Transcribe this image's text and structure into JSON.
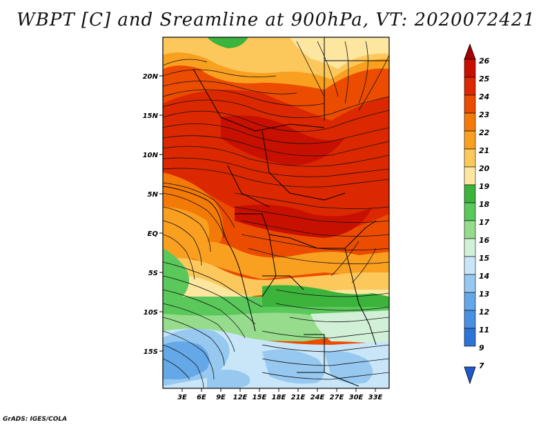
{
  "title": "WBPT [C] and Sreamline at 900hPa, VT: 2020072421",
  "credit": "GrADS: IGES/COLA",
  "map": {
    "lat_ticks": [
      "20N",
      "15N",
      "10N",
      "5N",
      "EQ",
      "5S",
      "10S",
      "15S"
    ],
    "lon_ticks": [
      "3E",
      "6E",
      "9E",
      "12E",
      "15E",
      "18E",
      "21E",
      "24E",
      "27E",
      "30E",
      "33E"
    ]
  },
  "colorbar": {
    "labels": [
      "26",
      "25",
      "24",
      "23",
      "22",
      "21",
      "20",
      "19",
      "18",
      "17",
      "16",
      "15",
      "14",
      "13",
      "12",
      "11",
      "9",
      "7"
    ],
    "colors": [
      "#a50000",
      "#c81000",
      "#dc2800",
      "#ec4c00",
      "#f47a08",
      "#f9a020",
      "#fcc85c",
      "#fde6a0",
      "#3cb43c",
      "#5ac85a",
      "#96dc8c",
      "#d2f0d8",
      "#c8e6f8",
      "#96c8f0",
      "#64a8e8",
      "#4a90e0",
      "#2c74d8",
      "#1e5ac8"
    ]
  }
}
